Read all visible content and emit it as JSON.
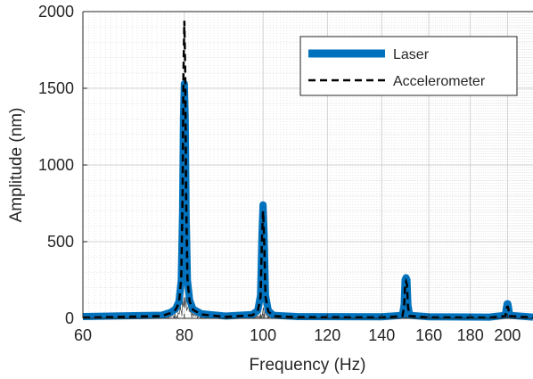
{
  "chart_data": {
    "type": "line",
    "title": "",
    "xlabel": "Frequency (Hz)",
    "ylabel": "Amplitude (nm)",
    "xscale": "log",
    "xlim": [
      60,
      215
    ],
    "ylim": [
      0,
      2000
    ],
    "xticks": [
      60,
      80,
      100,
      120,
      140,
      160,
      180,
      200
    ],
    "xtick_labels": [
      "60",
      "80",
      "100",
      "120",
      "140",
      "160",
      "180",
      "200"
    ],
    "yticks": [
      0,
      500,
      1000,
      1500,
      2000
    ],
    "ytick_labels": [
      "0",
      "500",
      "1000",
      "1500",
      "2000"
    ],
    "grid": true,
    "minor_grid": true,
    "legend_position": "top-right",
    "series": [
      {
        "name": "Laser",
        "color": "#0072BD",
        "style": "solid-thick",
        "x": [
          60,
          75,
          77,
          78,
          78.8,
          79.3,
          79.6,
          79.8,
          80,
          80.2,
          80.4,
          80.7,
          81.2,
          82,
          84,
          90,
          97,
          98.5,
          99.3,
          99.7,
          100,
          100.3,
          100.7,
          101.5,
          103,
          110,
          140,
          148.5,
          149.2,
          149.6,
          150,
          150.4,
          150.8,
          151.5,
          160,
          190,
          198.8,
          199.4,
          199.8,
          200.2,
          200.6,
          201.2,
          215
        ],
        "y": [
          12,
          20,
          40,
          60,
          110,
          250,
          700,
          1300,
          1530,
          1300,
          700,
          250,
          120,
          60,
          30,
          15,
          25,
          50,
          150,
          550,
          740,
          550,
          150,
          50,
          20,
          12,
          10,
          20,
          90,
          250,
          265,
          250,
          90,
          20,
          10,
          8,
          20,
          70,
          95,
          95,
          70,
          20,
          8
        ]
      },
      {
        "name": "Accelerometer",
        "color": "#000000",
        "style": "dashed",
        "x": [
          60,
          75,
          77,
          78,
          78.8,
          79.3,
          79.6,
          79.8,
          80,
          80.2,
          80.4,
          80.7,
          81.2,
          82,
          84,
          90,
          97,
          98.5,
          99.3,
          99.7,
          100,
          100.3,
          100.7,
          101.5,
          103,
          110,
          140,
          148.5,
          149.2,
          149.6,
          150,
          150.4,
          150.8,
          151.5,
          160,
          190,
          198.8,
          199.4,
          199.8,
          200.2,
          200.6,
          201.2,
          215
        ],
        "y": [
          5,
          15,
          35,
          55,
          100,
          260,
          800,
          1600,
          1940,
          1600,
          800,
          260,
          110,
          55,
          25,
          10,
          20,
          45,
          140,
          520,
          700,
          520,
          140,
          45,
          15,
          8,
          6,
          15,
          80,
          220,
          240,
          220,
          80,
          15,
          6,
          5,
          15,
          55,
          75,
          75,
          55,
          15,
          5
        ]
      }
    ]
  }
}
